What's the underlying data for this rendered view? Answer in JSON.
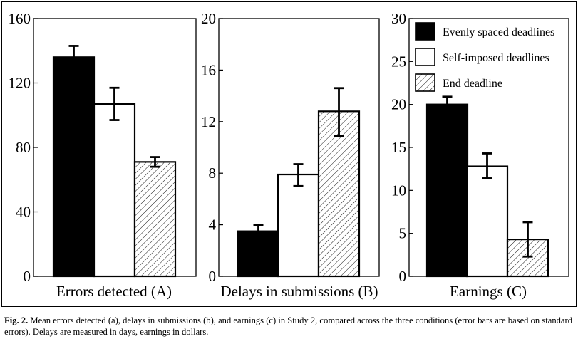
{
  "chart_data": [
    {
      "type": "bar",
      "title": "",
      "xlabel": "Errors detected (A)",
      "ylabel": "",
      "ylim": [
        0,
        160
      ],
      "yticks": [
        0,
        40,
        80,
        120,
        160
      ],
      "grid": false,
      "series": [
        {
          "name": "Evenly spaced deadlines",
          "value": 136,
          "err_low": 127,
          "err_high": 143
        },
        {
          "name": "Self-imposed deadlines",
          "value": 107,
          "err_low": 97,
          "err_high": 117
        },
        {
          "name": "End deadline",
          "value": 71,
          "err_low": 68,
          "err_high": 74
        }
      ]
    },
    {
      "type": "bar",
      "title": "",
      "xlabel": "Delays in submissions (B)",
      "ylabel": "",
      "ylim": [
        0,
        20
      ],
      "yticks": [
        0,
        4,
        8,
        12,
        16,
        20
      ],
      "grid": false,
      "series": [
        {
          "name": "Evenly spaced deadlines",
          "value": 3.5,
          "err_low": 3.1,
          "err_high": 4.0
        },
        {
          "name": "Self-imposed deadlines",
          "value": 7.9,
          "err_low": 7.0,
          "err_high": 8.7
        },
        {
          "name": "End deadline",
          "value": 12.8,
          "err_low": 10.9,
          "err_high": 14.6
        }
      ]
    },
    {
      "type": "bar",
      "title": "",
      "xlabel": "Earnings (C)",
      "ylabel": "",
      "ylim": [
        0,
        30
      ],
      "yticks": [
        0,
        5,
        10,
        15,
        20,
        25,
        30
      ],
      "grid": false,
      "legend_placement": "top-right",
      "series": [
        {
          "name": "Evenly spaced deadlines",
          "value": 20.0,
          "err_low": 19.3,
          "err_high": 20.9
        },
        {
          "name": "Self-imposed deadlines",
          "value": 12.8,
          "err_low": 11.4,
          "err_high": 14.3
        },
        {
          "name": "End deadline",
          "value": 4.3,
          "err_low": 2.3,
          "err_high": 6.3
        }
      ]
    }
  ],
  "legend": [
    {
      "label": "Evenly spaced deadlines",
      "pattern": "solid-black"
    },
    {
      "label": "Self-imposed deadlines",
      "pattern": "white"
    },
    {
      "label": "End deadline",
      "pattern": "hatched"
    }
  ],
  "caption": {
    "label": "Fig. 2.",
    "text": "Mean errors detected (a), delays in submissions (b), and earnings (c) in Study 2, compared across the three conditions (error bars are based on standard errors). Delays are measured in days, earnings in dollars."
  }
}
